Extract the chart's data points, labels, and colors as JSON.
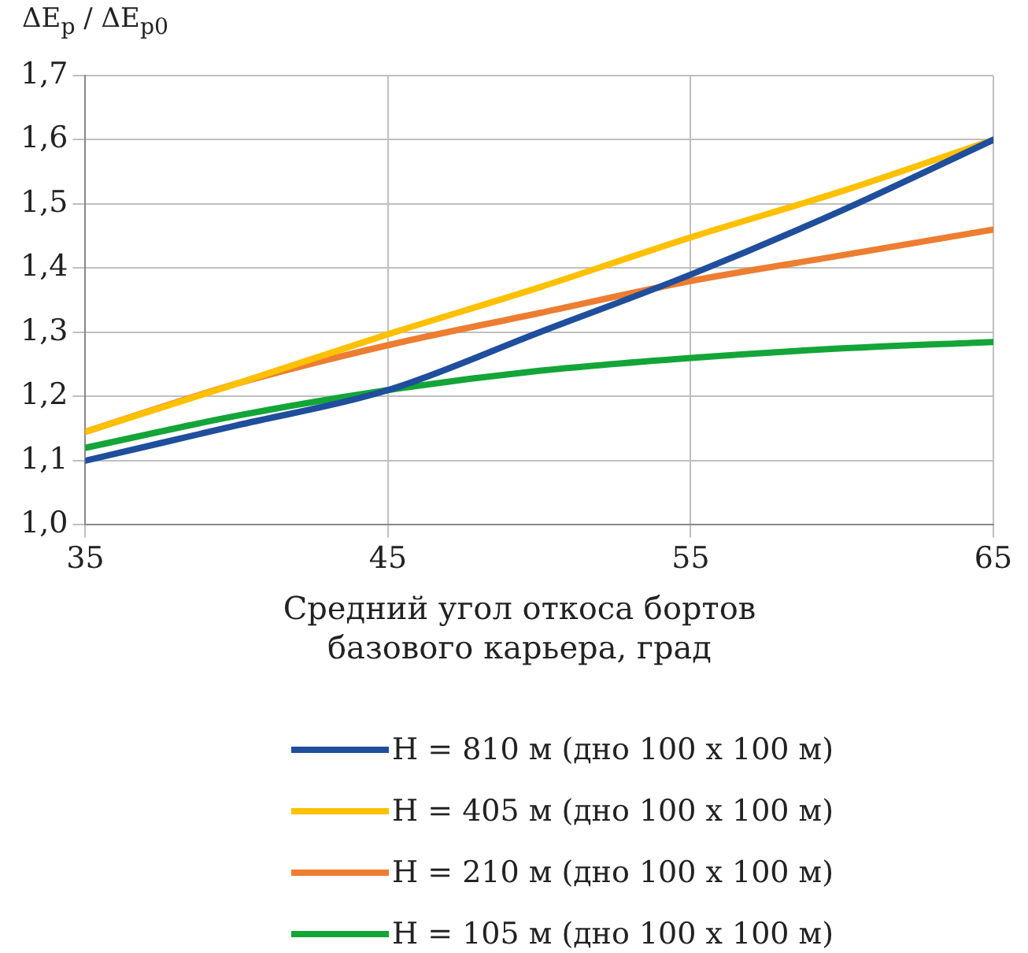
{
  "chart_data": {
    "type": "line",
    "ylabel": "ΔE$_{p}$ / ΔE$_{p0}$",
    "xlabel": "Средний угол откоса бортов базового карьера, град",
    "x": [
      35,
      40,
      45,
      50,
      55,
      60,
      65
    ],
    "series": [
      {
        "name": "H = 810 м (дно 100 х 100 м)",
        "color": "#1f4e9c",
        "values": [
          1.1,
          1.155,
          1.21,
          1.3,
          1.39,
          1.49,
          1.6
        ]
      },
      {
        "name": "H = 405 м (дно 100 х 100 м)",
        "color": "#ffc000",
        "values": [
          1.145,
          1.22,
          1.297,
          1.37,
          1.448,
          1.52,
          1.6
        ]
      },
      {
        "name": "H = 210 м (дно 100 х 100 м)",
        "color": "#ed7d31",
        "values": [
          1.145,
          1.22,
          1.28,
          1.33,
          1.38,
          1.42,
          1.46
        ]
      },
      {
        "name": "H = 105 м (дно 100 х 100 м)",
        "color": "#13a538",
        "values": [
          1.12,
          1.17,
          1.21,
          1.24,
          1.26,
          1.275,
          1.285
        ]
      }
    ],
    "xlim": [
      35,
      65
    ],
    "xticks": [
      35,
      45,
      55,
      65
    ],
    "ylim": [
      1.0,
      1.7
    ],
    "yticks": [
      {
        "value": 1.0,
        "label": "1,0"
      },
      {
        "value": 1.1,
        "label": "1,1"
      },
      {
        "value": 1.2,
        "label": "1,2"
      },
      {
        "value": 1.3,
        "label": "1,3"
      },
      {
        "value": 1.4,
        "label": "1,4"
      },
      {
        "value": 1.5,
        "label": "1,5"
      },
      {
        "value": 1.6,
        "label": "1,6"
      },
      {
        "value": 1.7,
        "label": "1,7"
      }
    ],
    "grid": true,
    "legend": "bottom",
    "marker": "none",
    "line_style": "solid"
  }
}
